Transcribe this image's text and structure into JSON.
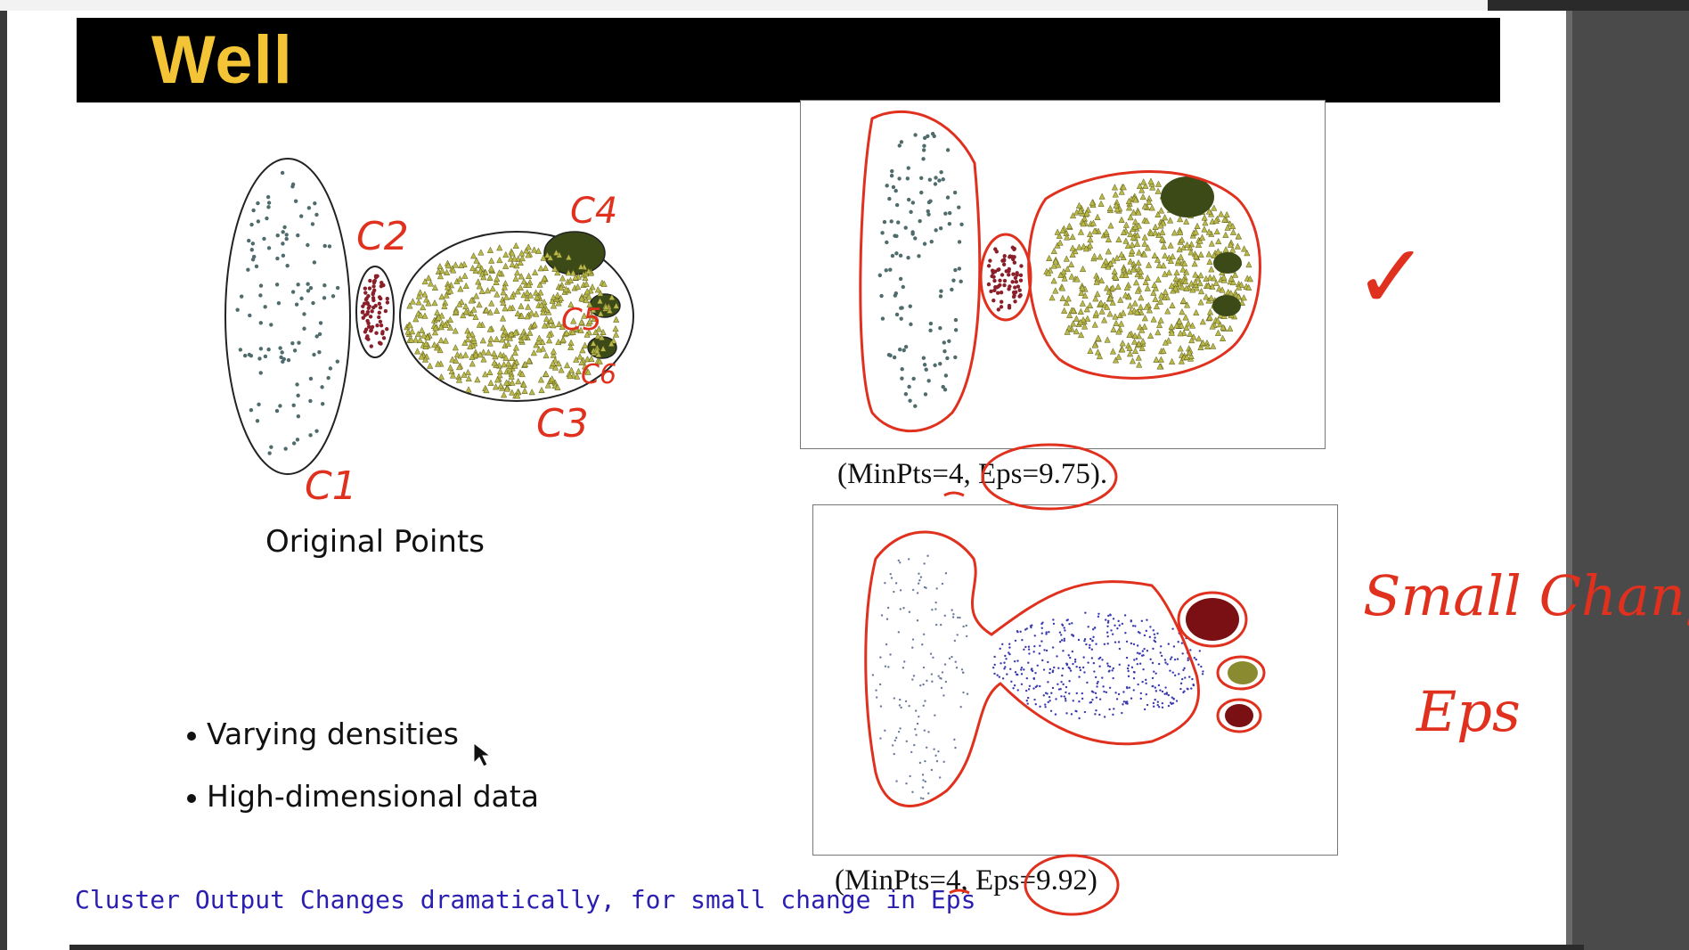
{
  "slide": {
    "title": "Well",
    "original_points_label": "Original Points",
    "bullets": [
      "Varying densities",
      "High-dimensional data"
    ],
    "note": "Cluster Output Changes dramatically, for small change in Eps"
  },
  "plots": {
    "top_caption": "(MinPts=4, Eps=9.75).",
    "bottom_caption": "(MinPts=4, Eps=9.92)"
  },
  "annotations": {
    "cluster_labels": [
      "C1",
      "C2",
      "C3",
      "C4",
      "C5",
      "C6"
    ],
    "check_mark": "✓",
    "handwritten_note": [
      "Small Change in",
      "Eps"
    ]
  },
  "colors": {
    "title_bar": "#000000",
    "title_text": "#f2c436",
    "annotation_red": "#e0301e",
    "note_blue": "#2a1fb0",
    "gray_points": "#4f6b6b",
    "maroon_points": "#8a1f2a",
    "olive_points": "#b9b84a"
  }
}
